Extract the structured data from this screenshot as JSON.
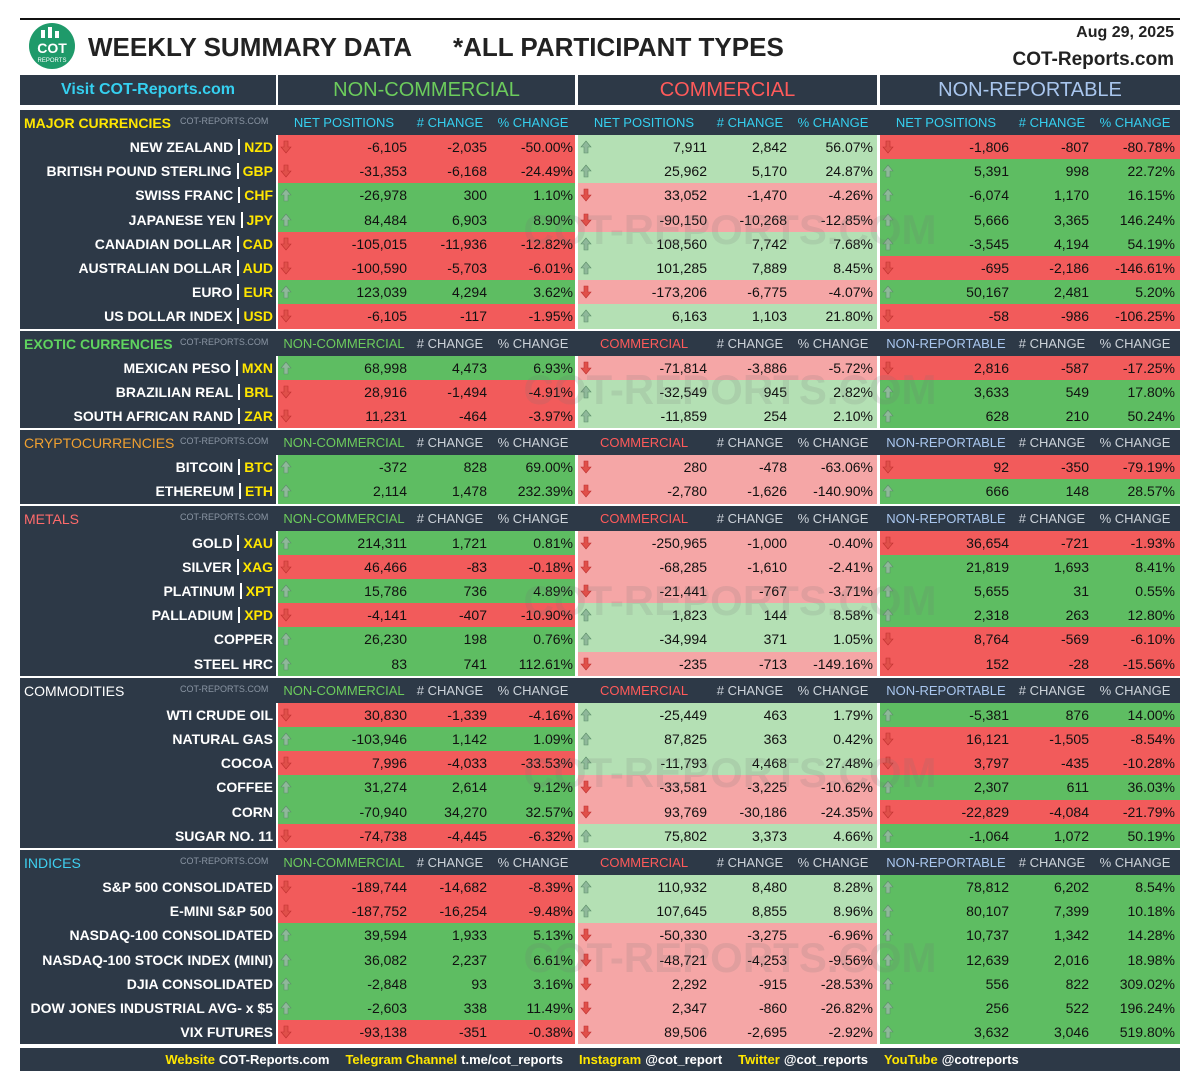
{
  "header": {
    "logo": {
      "line1": "COT",
      "line2": "REPORTS"
    },
    "title": "WEEKLY SUMMARY DATA",
    "subtitle": "*ALL PARTICIPANT TYPES",
    "date": "Aug 29, 2025",
    "site": "COT-Reports.com"
  },
  "top_header": {
    "link": "Visit COT-Reports.com",
    "groups": [
      "NON-COMMERCIAL",
      "COMMERCIAL",
      "NON-REPORTABLE"
    ]
  },
  "watermark": "COT-REPORTS.COM",
  "sections": [
    {
      "title": "MAJOR CURRENCIES",
      "tag": "COT-REPORTS.COM",
      "columns": [
        "NET POSITIONS",
        "# CHANGE",
        "% CHANGE",
        "NET POSITIONS",
        "# CHANGE",
        "% CHANGE",
        "NET POSITIONS",
        "# CHANGE",
        "% CHANGE"
      ],
      "rows": [
        {
          "name": "NEW ZEALAND",
          "code": "NZD",
          "cells": [
            "-6,105",
            "-2,035",
            "-50.00%",
            "7,911",
            "2,842",
            "56.07%",
            "-1,806",
            "-807",
            "-80.78%"
          ]
        },
        {
          "name": "BRITISH POUND STERLING",
          "code": "GBP",
          "cells": [
            "-31,353",
            "-6,168",
            "-24.49%",
            "25,962",
            "5,170",
            "24.87%",
            "5,391",
            "998",
            "22.72%"
          ]
        },
        {
          "name": "SWISS FRANC",
          "code": "CHF",
          "cells": [
            "-26,978",
            "300",
            "1.10%",
            "33,052",
            "-1,470",
            "-4.26%",
            "-6,074",
            "1,170",
            "16.15%"
          ]
        },
        {
          "name": "JAPANESE YEN",
          "code": "JPY",
          "cells": [
            "84,484",
            "6,903",
            "8.90%",
            "-90,150",
            "-10,268",
            "-12.85%",
            "5,666",
            "3,365",
            "146.24%"
          ]
        },
        {
          "name": "CANADIAN DOLLAR",
          "code": "CAD",
          "cells": [
            "-105,015",
            "-11,936",
            "-12.82%",
            "108,560",
            "7,742",
            "7.68%",
            "-3,545",
            "4,194",
            "54.19%"
          ]
        },
        {
          "name": "AUSTRALIAN DOLLAR",
          "code": "AUD",
          "cells": [
            "-100,590",
            "-5,703",
            "-6.01%",
            "101,285",
            "7,889",
            "8.45%",
            "-695",
            "-2,186",
            "-146.61%"
          ]
        },
        {
          "name": "EURO",
          "code": "EUR",
          "cells": [
            "123,039",
            "4,294",
            "3.62%",
            "-173,206",
            "-6,775",
            "-4.07%",
            "50,167",
            "2,481",
            "5.20%"
          ]
        },
        {
          "name": "US DOLLAR INDEX",
          "code": "USD",
          "cells": [
            "-6,105",
            "-117",
            "-1.95%",
            "6,163",
            "1,103",
            "21.80%",
            "-58",
            "-986",
            "-106.25%"
          ]
        }
      ]
    },
    {
      "title": "EXOTIC CURRENCIES",
      "tag": "COT-REPORTS.COM",
      "columns": [
        "NON-COMMERCIAL",
        "# CHANGE",
        "% CHANGE",
        "COMMERCIAL",
        "# CHANGE",
        "% CHANGE",
        "NON-REPORTABLE",
        "# CHANGE",
        "% CHANGE"
      ],
      "rows": [
        {
          "name": "MEXICAN PESO",
          "code": "MXN",
          "cells": [
            "68,998",
            "4,473",
            "6.93%",
            "-71,814",
            "-3,886",
            "-5.72%",
            "2,816",
            "-587",
            "-17.25%"
          ]
        },
        {
          "name": "BRAZILIAN REAL",
          "code": "BRL",
          "cells": [
            "28,916",
            "-1,494",
            "-4.91%",
            "-32,549",
            "945",
            "2.82%",
            "3,633",
            "549",
            "17.80%"
          ]
        },
        {
          "name": "SOUTH AFRICAN RAND",
          "code": "ZAR",
          "cells": [
            "11,231",
            "-464",
            "-3.97%",
            "-11,859",
            "254",
            "2.10%",
            "628",
            "210",
            "50.24%"
          ]
        }
      ]
    },
    {
      "title": "CRYPTOCURRENCIES",
      "tag": "COT-REPORTS.COM",
      "columns": [
        "NON-COMMERCIAL",
        "# CHANGE",
        "% CHANGE",
        "COMMERCIAL",
        "# CHANGE",
        "% CHANGE",
        "NON-REPORTABLE",
        "# CHANGE",
        "% CHANGE"
      ],
      "rows": [
        {
          "name": "BITCOIN",
          "code": "BTC",
          "cells": [
            "-372",
            "828",
            "69.00%",
            "280",
            "-478",
            "-63.06%",
            "92",
            "-350",
            "-79.19%"
          ]
        },
        {
          "name": "ETHEREUM",
          "code": "ETH",
          "cells": [
            "2,114",
            "1,478",
            "232.39%",
            "-2,780",
            "-1,626",
            "-140.90%",
            "666",
            "148",
            "28.57%"
          ]
        }
      ]
    },
    {
      "title": "METALS",
      "tag": "COT-REPORTS.COM",
      "columns": [
        "NON-COMMERCIAL",
        "# CHANGE",
        "% CHANGE",
        "COMMERCIAL",
        "# CHANGE",
        "% CHANGE",
        "NON-REPORTABLE",
        "# CHANGE",
        "% CHANGE"
      ],
      "rows": [
        {
          "name": "GOLD",
          "code": "XAU",
          "cells": [
            "214,311",
            "1,721",
            "0.81%",
            "-250,965",
            "-1,000",
            "-0.40%",
            "36,654",
            "-721",
            "-1.93%"
          ]
        },
        {
          "name": "SILVER",
          "code": "XAG",
          "cells": [
            "46,466",
            "-83",
            "-0.18%",
            "-68,285",
            "-1,610",
            "-2.41%",
            "21,819",
            "1,693",
            "8.41%"
          ]
        },
        {
          "name": "PLATINUM",
          "code": "XPT",
          "cells": [
            "15,786",
            "736",
            "4.89%",
            "-21,441",
            "-767",
            "-3.71%",
            "5,655",
            "31",
            "0.55%"
          ]
        },
        {
          "name": "PALLADIUM",
          "code": "XPD",
          "cells": [
            "-4,141",
            "-407",
            "-10.90%",
            "1,823",
            "144",
            "8.58%",
            "2,318",
            "263",
            "12.80%"
          ]
        },
        {
          "name": "COPPER",
          "cells": [
            "26,230",
            "198",
            "0.76%",
            "-34,994",
            "371",
            "1.05%",
            "8,764",
            "-569",
            "-6.10%"
          ]
        },
        {
          "name": "STEEL HRC",
          "cells": [
            "83",
            "741",
            "112.61%",
            "-235",
            "-713",
            "-149.16%",
            "152",
            "-28",
            "-15.56%"
          ]
        }
      ]
    },
    {
      "title": "COMMODITIES",
      "tag": "COT-REPORTS.COM",
      "columns": [
        "NON-COMMERCIAL",
        "# CHANGE",
        "% CHANGE",
        "COMMERCIAL",
        "# CHANGE",
        "% CHANGE",
        "NON-REPORTABLE",
        "# CHANGE",
        "% CHANGE"
      ],
      "rows": [
        {
          "name": "WTI CRUDE OIL",
          "cells": [
            "30,830",
            "-1,339",
            "-4.16%",
            "-25,449",
            "463",
            "1.79%",
            "-5,381",
            "876",
            "14.00%"
          ]
        },
        {
          "name": "NATURAL GAS",
          "cells": [
            "-103,946",
            "1,142",
            "1.09%",
            "87,825",
            "363",
            "0.42%",
            "16,121",
            "-1,505",
            "-8.54%"
          ]
        },
        {
          "name": "COCOA",
          "cells": [
            "7,996",
            "-4,033",
            "-33.53%",
            "-11,793",
            "4,468",
            "27.48%",
            "3,797",
            "-435",
            "-10.28%"
          ]
        },
        {
          "name": "COFFEE",
          "cells": [
            "31,274",
            "2,614",
            "9.12%",
            "-33,581",
            "-3,225",
            "-10.62%",
            "2,307",
            "611",
            "36.03%"
          ]
        },
        {
          "name": "CORN",
          "cells": [
            "-70,940",
            "34,270",
            "32.57%",
            "93,769",
            "-30,186",
            "-24.35%",
            "-22,829",
            "-4,084",
            "-21.79%"
          ]
        },
        {
          "name": "SUGAR NO. 11",
          "cells": [
            "-74,738",
            "-4,445",
            "-6.32%",
            "75,802",
            "3,373",
            "4.66%",
            "-1,064",
            "1,072",
            "50.19%"
          ]
        }
      ]
    },
    {
      "title": "INDICES",
      "tag": "COT-REPORTS.COM",
      "columns": [
        "NON-COMMERCIAL",
        "# CHANGE",
        "% CHANGE",
        "COMMERCIAL",
        "# CHANGE",
        "% CHANGE",
        "NON-REPORTABLE",
        "# CHANGE",
        "% CHANGE"
      ],
      "rows": [
        {
          "name": "S&P 500 CONSOLIDATED",
          "cells": [
            "-189,744",
            "-14,682",
            "-8.39%",
            "110,932",
            "8,480",
            "8.28%",
            "78,812",
            "6,202",
            "8.54%"
          ]
        },
        {
          "name": "E-MINI S&P 500",
          "cells": [
            "-187,752",
            "-16,254",
            "-9.48%",
            "107,645",
            "8,855",
            "8.96%",
            "80,107",
            "7,399",
            "10.18%"
          ]
        },
        {
          "name": "NASDAQ-100 CONSOLIDATED",
          "cells": [
            "39,594",
            "1,933",
            "5.13%",
            "-50,330",
            "-3,275",
            "-6.96%",
            "10,737",
            "1,342",
            "14.28%"
          ]
        },
        {
          "name": "NASDAQ-100 STOCK INDEX (MINI)",
          "cells": [
            "36,082",
            "2,237",
            "6.61%",
            "-48,721",
            "-4,253",
            "-9.56%",
            "12,639",
            "2,016",
            "18.98%"
          ]
        },
        {
          "name": "DJIA CONSOLIDATED",
          "cells": [
            "-2,848",
            "93",
            "3.16%",
            "2,292",
            "-915",
            "-28.53%",
            "556",
            "822",
            "309.02%"
          ]
        },
        {
          "name": "DOW JONES INDUSTRIAL AVG- x $5",
          "cells": [
            "-2,603",
            "338",
            "11.49%",
            "2,347",
            "-860",
            "-26.82%",
            "256",
            "522",
            "196.24%"
          ]
        },
        {
          "name": "VIX FUTURES",
          "cells": [
            "-93,138",
            "-351",
            "-0.38%",
            "89,506",
            "-2,695",
            "-2.92%",
            "3,632",
            "3,046",
            "519.80%"
          ]
        }
      ]
    }
  ],
  "footer": [
    {
      "label": "Website",
      "value": "COT-Reports.com"
    },
    {
      "label": "Telegram Channel",
      "value": "t.me/cot_reports"
    },
    {
      "label": "Instagram",
      "value": "@cot_report"
    },
    {
      "label": "Twitter",
      "value": "@cot_reports"
    },
    {
      "label": "YouTube",
      "value": "@cotreports"
    }
  ]
}
